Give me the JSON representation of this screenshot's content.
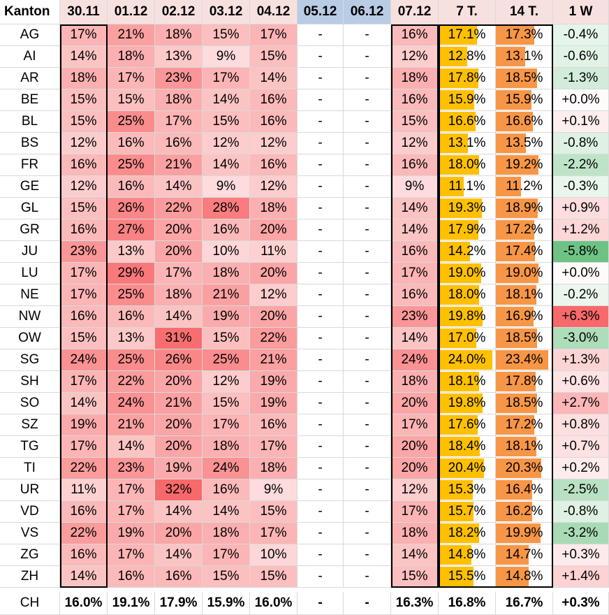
{
  "columns": [
    "Kanton",
    "30.11",
    "01.12",
    "02.12",
    "03.12",
    "04.12",
    "05.12",
    "06.12",
    "07.12",
    "7 T.",
    "14 T.",
    "1 W"
  ],
  "rows": [
    {
      "kanton": "AG",
      "d": [
        "17%",
        "21%",
        "18%",
        "15%",
        "17%",
        "-",
        "-",
        "16%"
      ],
      "t7": 17.1,
      "t14": 17.3,
      "w": "-0.4%",
      "wv": -0.4
    },
    {
      "kanton": "AI",
      "d": [
        "14%",
        "18%",
        "13%",
        "9%",
        "15%",
        "-",
        "-",
        "12%"
      ],
      "t7": 12.8,
      "t14": 13.1,
      "w": "-0.6%",
      "wv": -0.6
    },
    {
      "kanton": "AR",
      "d": [
        "18%",
        "17%",
        "23%",
        "17%",
        "14%",
        "-",
        "-",
        "18%"
      ],
      "t7": 17.8,
      "t14": 18.5,
      "w": "-1.3%",
      "wv": -1.3
    },
    {
      "kanton": "BE",
      "d": [
        "15%",
        "15%",
        "18%",
        "14%",
        "16%",
        "-",
        "-",
        "16%"
      ],
      "t7": 15.9,
      "t14": 15.9,
      "w": "+0.0%",
      "wv": 0.0
    },
    {
      "kanton": "BL",
      "d": [
        "15%",
        "25%",
        "17%",
        "15%",
        "16%",
        "-",
        "-",
        "15%"
      ],
      "t7": 16.6,
      "t14": 16.6,
      "w": "+0.1%",
      "wv": 0.1
    },
    {
      "kanton": "BS",
      "d": [
        "12%",
        "16%",
        "16%",
        "12%",
        "12%",
        "-",
        "-",
        "12%"
      ],
      "t7": 13.1,
      "t14": 13.5,
      "w": "-0.8%",
      "wv": -0.8
    },
    {
      "kanton": "FR",
      "d": [
        "16%",
        "25%",
        "21%",
        "14%",
        "16%",
        "-",
        "-",
        "16%"
      ],
      "t7": 18.0,
      "t14": 19.2,
      "w": "-2.2%",
      "wv": -2.2
    },
    {
      "kanton": "GE",
      "d": [
        "12%",
        "16%",
        "14%",
        "9%",
        "12%",
        "-",
        "-",
        "9%"
      ],
      "t7": 11.1,
      "t14": 11.2,
      "w": "-0.3%",
      "wv": -0.3
    },
    {
      "kanton": "GL",
      "d": [
        "15%",
        "26%",
        "22%",
        "28%",
        "18%",
        "-",
        "-",
        "14%"
      ],
      "t7": 19.3,
      "t14": 18.9,
      "w": "+0.9%",
      "wv": 0.9
    },
    {
      "kanton": "GR",
      "d": [
        "16%",
        "27%",
        "20%",
        "16%",
        "20%",
        "-",
        "-",
        "14%"
      ],
      "t7": 17.9,
      "t14": 17.2,
      "w": "+1.2%",
      "wv": 1.2
    },
    {
      "kanton": "JU",
      "d": [
        "23%",
        "13%",
        "20%",
        "10%",
        "11%",
        "-",
        "-",
        "16%"
      ],
      "t7": 14.2,
      "t14": 17.4,
      "w": "-5.8%",
      "wv": -5.8
    },
    {
      "kanton": "LU",
      "d": [
        "17%",
        "29%",
        "17%",
        "18%",
        "20%",
        "-",
        "-",
        "17%"
      ],
      "t7": 19.0,
      "t14": 19.0,
      "w": "+0.0%",
      "wv": 0.0
    },
    {
      "kanton": "NE",
      "d": [
        "17%",
        "25%",
        "18%",
        "21%",
        "12%",
        "-",
        "-",
        "16%"
      ],
      "t7": 18.0,
      "t14": 18.1,
      "w": "-0.2%",
      "wv": -0.2
    },
    {
      "kanton": "NW",
      "d": [
        "16%",
        "16%",
        "14%",
        "19%",
        "20%",
        "-",
        "-",
        "23%"
      ],
      "t7": 19.8,
      "t14": 16.9,
      "w": "+6.3%",
      "wv": 6.3
    },
    {
      "kanton": "OW",
      "d": [
        "15%",
        "13%",
        "31%",
        "15%",
        "22%",
        "-",
        "-",
        "14%"
      ],
      "t7": 17.0,
      "t14": 18.5,
      "w": "-3.0%",
      "wv": -3.0
    },
    {
      "kanton": "SG",
      "d": [
        "24%",
        "25%",
        "26%",
        "25%",
        "21%",
        "-",
        "-",
        "24%"
      ],
      "t7": 24.0,
      "t14": 23.4,
      "w": "+1.3%",
      "wv": 1.3
    },
    {
      "kanton": "SH",
      "d": [
        "17%",
        "22%",
        "20%",
        "12%",
        "19%",
        "-",
        "-",
        "18%"
      ],
      "t7": 18.1,
      "t14": 17.8,
      "w": "+0.6%",
      "wv": 0.6
    },
    {
      "kanton": "SO",
      "d": [
        "14%",
        "24%",
        "21%",
        "15%",
        "19%",
        "-",
        "-",
        "20%"
      ],
      "t7": 19.8,
      "t14": 18.5,
      "w": "+2.7%",
      "wv": 2.7
    },
    {
      "kanton": "SZ",
      "d": [
        "19%",
        "21%",
        "20%",
        "17%",
        "16%",
        "-",
        "-",
        "17%"
      ],
      "t7": 17.6,
      "t14": 17.2,
      "w": "+0.8%",
      "wv": 0.8
    },
    {
      "kanton": "TG",
      "d": [
        "17%",
        "14%",
        "20%",
        "18%",
        "17%",
        "-",
        "-",
        "20%"
      ],
      "t7": 18.4,
      "t14": 18.1,
      "w": "+0.7%",
      "wv": 0.7
    },
    {
      "kanton": "TI",
      "d": [
        "22%",
        "23%",
        "19%",
        "24%",
        "18%",
        "-",
        "-",
        "20%"
      ],
      "t7": 20.4,
      "t14": 20.3,
      "w": "+0.2%",
      "wv": 0.2
    },
    {
      "kanton": "UR",
      "d": [
        "11%",
        "17%",
        "32%",
        "16%",
        "9%",
        "-",
        "-",
        "12%"
      ],
      "t7": 15.3,
      "t14": 16.4,
      "w": "-2.5%",
      "wv": -2.5
    },
    {
      "kanton": "VD",
      "d": [
        "16%",
        "17%",
        "14%",
        "14%",
        "15%",
        "-",
        "-",
        "17%"
      ],
      "t7": 15.7,
      "t14": 16.2,
      "w": "-0.8%",
      "wv": -0.8
    },
    {
      "kanton": "VS",
      "d": [
        "22%",
        "19%",
        "20%",
        "18%",
        "17%",
        "-",
        "-",
        "18%"
      ],
      "t7": 18.2,
      "t14": 19.9,
      "w": "-3.2%",
      "wv": -3.2
    },
    {
      "kanton": "ZG",
      "d": [
        "16%",
        "17%",
        "14%",
        "17%",
        "10%",
        "-",
        "-",
        "14%"
      ],
      "t7": 14.8,
      "t14": 14.7,
      "w": "+0.3%",
      "wv": 0.3
    },
    {
      "kanton": "ZH",
      "d": [
        "14%",
        "16%",
        "16%",
        "15%",
        "15%",
        "-",
        "-",
        "15%"
      ],
      "t7": 15.5,
      "t14": 14.8,
      "w": "+1.4%",
      "wv": 1.4
    }
  ],
  "total": {
    "kanton": "CH",
    "d": [
      "16.0%",
      "19.1%",
      "17.9%",
      "15.9%",
      "16.0%",
      "-",
      "-",
      "16.3%"
    ],
    "t7": "16.8%",
    "t14": "16.7%",
    "w": "+0.3%"
  },
  "colors": {
    "heat_hi": "#f8696b",
    "heat_lo": "#fff8f8",
    "bar_7t": "#ffc000",
    "bar_14t": "#f79646",
    "neg": "#63be7b",
    "pos": "#f8696b",
    "gap_header": "#b8cce4"
  }
}
